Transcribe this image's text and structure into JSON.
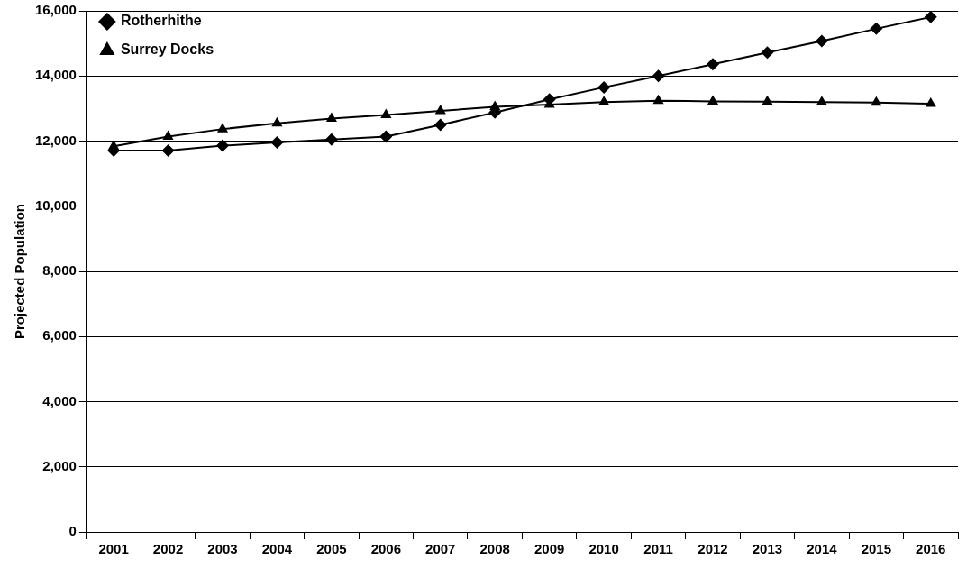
{
  "chart_data": {
    "type": "line",
    "ylabel": "Projected Population",
    "categories": [
      "2001",
      "2002",
      "2003",
      "2004",
      "2005",
      "2006",
      "2007",
      "2008",
      "2009",
      "2010",
      "2011",
      "2012",
      "2013",
      "2014",
      "2015",
      "2016"
    ],
    "series": [
      {
        "name": "Rotherhithe",
        "color": "#000000",
        "marker": "diamond",
        "values": [
          11710,
          11710,
          11860,
          11960,
          12050,
          12140,
          12500,
          12880,
          13280,
          13650,
          14000,
          14360,
          14720,
          15070,
          15450,
          15810
        ]
      },
      {
        "name": "Surrey Docks",
        "color": "#000000",
        "marker": "triangle",
        "values": [
          11840,
          12140,
          12370,
          12550,
          12690,
          12800,
          12930,
          13050,
          13120,
          13200,
          13240,
          13220,
          13210,
          13200,
          13180,
          13150
        ]
      }
    ],
    "ylim": [
      0,
      16000
    ],
    "yticks": [
      {
        "value": 0,
        "label": "0"
      },
      {
        "value": 2000,
        "label": "2,000"
      },
      {
        "value": 4000,
        "label": "4,000"
      },
      {
        "value": 6000,
        "label": "6,000"
      },
      {
        "value": 8000,
        "label": "8,000"
      },
      {
        "value": 10000,
        "label": "10,000"
      },
      {
        "value": 12000,
        "label": "12,000"
      },
      {
        "value": 14000,
        "label": "14,000"
      },
      {
        "value": 16000,
        "label": "16,000"
      }
    ],
    "grid": "y",
    "legend": "top left",
    "line_style": "solid"
  }
}
